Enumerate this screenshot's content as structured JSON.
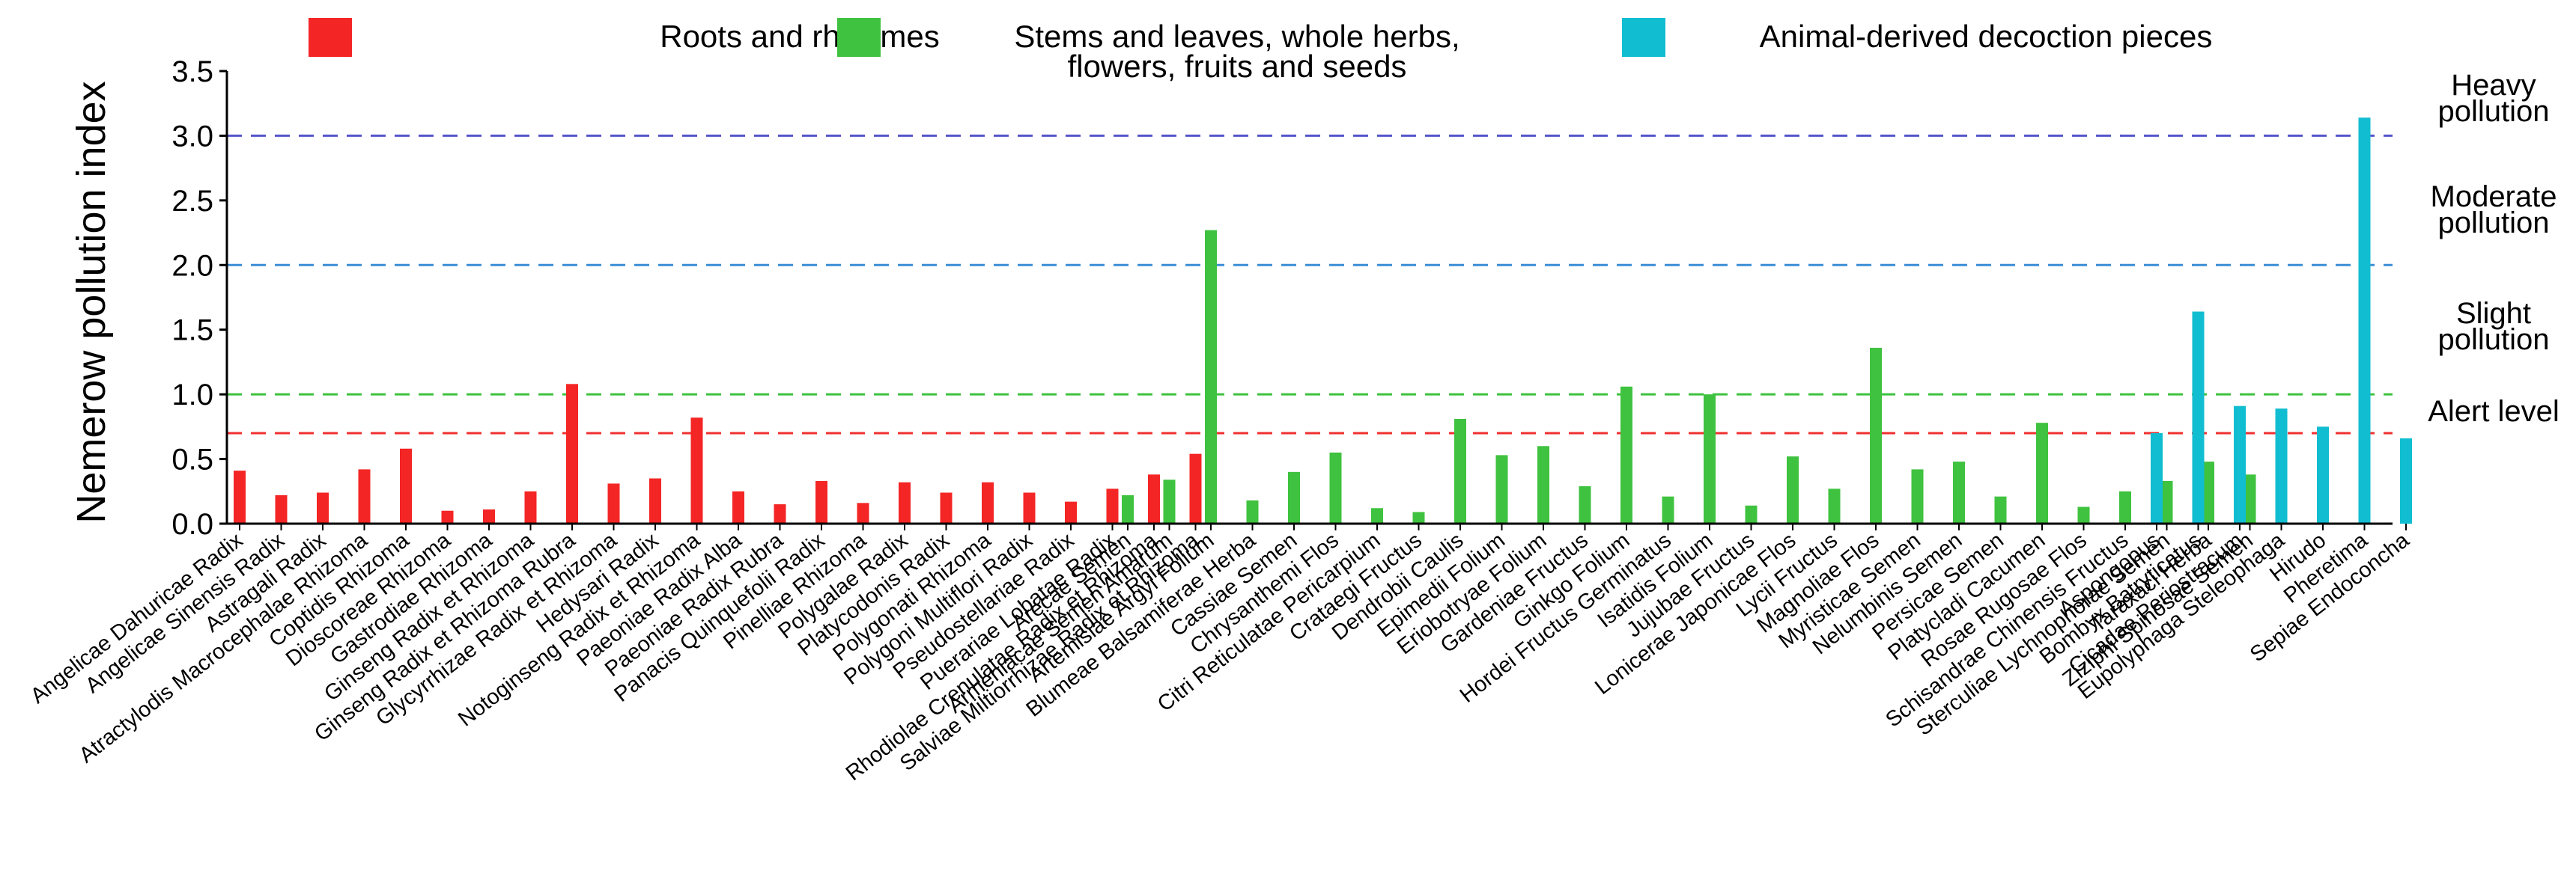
{
  "chart_data": {
    "type": "bar",
    "ylabel": "Nemerow pollution index",
    "ylim": [
      0,
      3.5
    ],
    "yticks": [
      "0.0",
      "0.5",
      "1.0",
      "1.5",
      "2.0",
      "2.5",
      "3.0",
      "3.5"
    ],
    "legend": [
      {
        "name": "Roots and rhizomes",
        "color": "#f42525"
      },
      {
        "name": "Stems and leaves, whole herbs, flowers, fruits and seeds",
        "line1": "Stems and leaves, whole herbs,",
        "line2": "flowers, fruits and seeds",
        "color": "#3fc23f"
      },
      {
        "name": "Animal-derived decoction pieces",
        "color": "#11bdd0"
      }
    ],
    "reference_lines": [
      {
        "value": 3.0,
        "color": "#5555cc",
        "label_lines": [
          "Heavy",
          "pollution"
        ]
      },
      {
        "value": 2.0,
        "color": "#3b8ed6",
        "label_lines": [
          "Moderate",
          "pollution"
        ]
      },
      {
        "value": 1.0,
        "color": "#3fc23f",
        "label_lines": [
          "Slight",
          "pollution"
        ]
      },
      {
        "value": 0.7,
        "color": "#f03030",
        "label_lines": [
          "Alert level"
        ]
      }
    ],
    "series": [
      {
        "name": "Roots and rhizomes",
        "color": "#f42525",
        "categories": [
          "Angelicae Dahuricae Radix",
          "Angelicae Sinensis Radix",
          "Astragali Radix",
          "Atractylodis Macrocephalae Rhizoma",
          "Coptidis Rhizoma",
          "Dioscoreae Rhizoma",
          "Gastrodiae Rhizoma",
          "Ginseng Radix et Rhizoma",
          "Ginseng Radix et Rhizoma Rubra",
          "Glycyrrhizae Radix et Rhizoma",
          "Hedysari Radix",
          "Notoginseng Radix et Rhizoma",
          "Paeoniae Radix Alba",
          "Paeoniae Radix Rubra",
          "Panacis Quinquefolii Radix",
          "Pinelliae Rhizoma",
          "Polygalae Radix",
          "Platycodonis Radix",
          "Polygonati Rhizoma",
          "Polygoni Multiflori Radix",
          "Pseudostellariae Radix",
          "Puerariae Lobatae Radix",
          "Rhodiolae Crenulatae Radix et Rhizoma",
          "Salviae Miltiorrhizae Radix et Rhizoma"
        ],
        "values": [
          0.41,
          0.22,
          0.24,
          0.42,
          0.58,
          0.1,
          0.11,
          0.25,
          1.08,
          0.31,
          0.35,
          0.82,
          0.25,
          0.15,
          0.33,
          0.16,
          0.32,
          0.24,
          0.32,
          0.24,
          0.17,
          0.27,
          0.38,
          0.54
        ]
      },
      {
        "name": "Stems and leaves, whole herbs, flowers, fruits and seeds",
        "color": "#3fc23f",
        "categories": [
          "Arecae Semen",
          "Armeniacae Semen Amarum",
          "Artemisiae Argyi Folium",
          "Blumeae Balsamiferae Herba",
          "Cassiae Semen",
          "Chrysanthemi Flos",
          "Citri Reticulatae Pericarpium",
          "Crataegi Fructus",
          "Dendrobii Caulis",
          "Epimedii Folium",
          "Eriobotryae Folium",
          "Gardeniae Fructus",
          "Ginkgo Folium",
          "Hordei Fructus Germinatus",
          "Isatidis Folium",
          "Jujubae Fructus",
          "Lonicerae Japonicae Flos",
          "Lycii Fructus",
          "Magnoliae Flos",
          "Myristicae Semen",
          "Nelumbinis Semen",
          "Persicae Semen",
          "Platycladi Cacumen",
          "Rosae Rugosae Flos",
          "Schisandrae Chinensis Fructus",
          "Sterculiae Lychnophorae Semen",
          "Taraxaci Herba",
          "Ziziphi Spinosae Semen"
        ],
        "values": [
          0.22,
          0.34,
          2.27,
          0.18,
          0.4,
          0.55,
          0.12,
          0.09,
          0.81,
          0.53,
          0.6,
          0.29,
          1.06,
          0.21,
          1.0,
          0.14,
          0.52,
          0.27,
          1.36,
          0.42,
          0.48,
          0.21,
          0.78,
          0.13,
          0.25,
          0.33,
          0.48,
          0.38
        ]
      },
      {
        "name": "Animal-derived decoction pieces",
        "color": "#11bdd0",
        "categories": [
          "Aspongopus",
          "Bombyx Batryticatus",
          "Cicadae Periostracum",
          "Eupolyphaga Steleophaga",
          "Hirudo",
          "Pheretima",
          "Sepiae Endoconcha"
        ],
        "values": [
          0.7,
          1.64,
          0.91,
          0.89,
          0.75,
          3.14,
          0.66
        ]
      }
    ]
  }
}
